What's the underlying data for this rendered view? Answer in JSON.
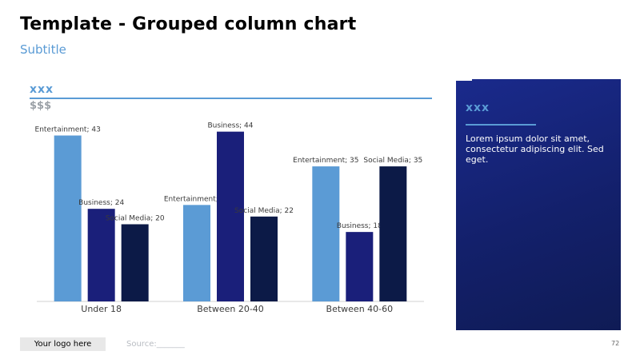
{
  "header": {
    "title": "Template - Grouped column chart",
    "subtitle": "Subtitle"
  },
  "chart_header": {
    "label": "xxx",
    "units": "$$$"
  },
  "chart_data": {
    "type": "bar",
    "title": "",
    "xlabel": "",
    "ylabel": "",
    "categories": [
      "Under 18",
      "Between 20-40",
      "Between 40-60"
    ],
    "series": [
      {
        "name": "Entertainment",
        "values": [
          43,
          25,
          35
        ],
        "color": "#5b9bd5"
      },
      {
        "name": "Business",
        "values": [
          24,
          44,
          18
        ],
        "color": "#1a1f7a"
      },
      {
        "name": "Social Media",
        "values": [
          20,
          22,
          35
        ],
        "color": "#0c1a47"
      }
    ],
    "ylim": [
      0,
      46
    ],
    "grid": false,
    "legend": "none",
    "data_labels": true
  },
  "side_panel": {
    "title": "xxx",
    "text": "Lorem ipsum dolor sit amet, consectetur adipiscing elit. Sed eget."
  },
  "footer": {
    "logo_text": "Your logo here",
    "source": "Source:_______",
    "page_number": "72"
  },
  "colors": {
    "accent": "#5a9bd5",
    "panel_bg": "#13206b"
  }
}
